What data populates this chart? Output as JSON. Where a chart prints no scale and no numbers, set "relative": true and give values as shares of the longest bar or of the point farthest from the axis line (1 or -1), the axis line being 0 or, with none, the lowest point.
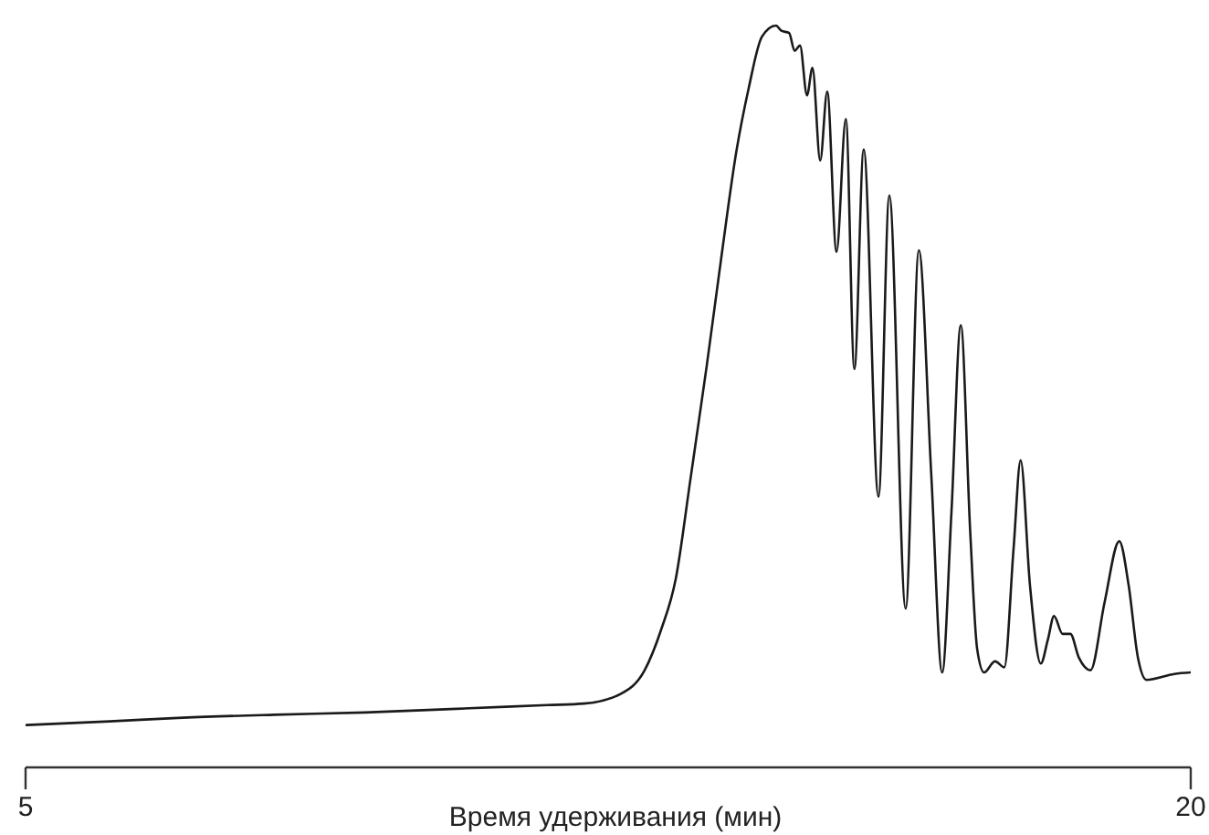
{
  "chart_data": {
    "type": "line",
    "xlabel": "Время удерживания (мин)",
    "relative": true,
    "xlim": [
      5,
      20
    ],
    "xticks": [
      5,
      20
    ],
    "tick_labels": "x",
    "grid": false,
    "marker": "none",
    "line_style": "solid",
    "x": [
      5.0,
      6.08,
      7.02,
      8.2,
      9.37,
      10.55,
      11.72,
      12.19,
      12.66,
      12.97,
      13.18,
      13.37,
      13.56,
      13.77,
      13.96,
      14.15,
      14.31,
      14.48,
      14.66,
      14.73,
      14.83,
      14.9,
      14.97,
      15.06,
      15.13,
      15.23,
      15.32,
      15.44,
      15.56,
      15.67,
      15.79,
      15.98,
      16.12,
      16.33,
      16.5,
      16.66,
      16.8,
      16.92,
      17.04,
      17.16,
      17.25,
      17.34,
      17.48,
      17.6,
      17.72,
      17.81,
      17.93,
      18.07,
      18.16,
      18.24,
      18.35,
      18.45,
      18.56,
      18.71,
      18.89,
      19.08,
      19.2,
      19.32,
      19.43,
      19.79,
      20.0
    ],
    "series": [
      {
        "color": "#1a1a1a",
        "values": [
          0.057,
          0.062,
          0.067,
          0.071,
          0.074,
          0.079,
          0.084,
          0.086,
          0.099,
          0.131,
          0.185,
          0.254,
          0.389,
          0.542,
          0.69,
          0.83,
          0.916,
          0.985,
          1,
          0.993,
          0.99,
          0.966,
          0.973,
          0.906,
          0.943,
          0.818,
          0.911,
          0.695,
          0.874,
          0.537,
          0.833,
          0.365,
          0.771,
          0.214,
          0.697,
          0.394,
          0.128,
          0.345,
          0.596,
          0.32,
          0.16,
          0.128,
          0.143,
          0.135,
          0.296,
          0.414,
          0.246,
          0.14,
          0.172,
          0.204,
          0.18,
          0.18,
          0.148,
          0.131,
          0.222,
          0.305,
          0.246,
          0.148,
          0.118,
          0.126,
          0.128
        ]
      }
    ]
  }
}
